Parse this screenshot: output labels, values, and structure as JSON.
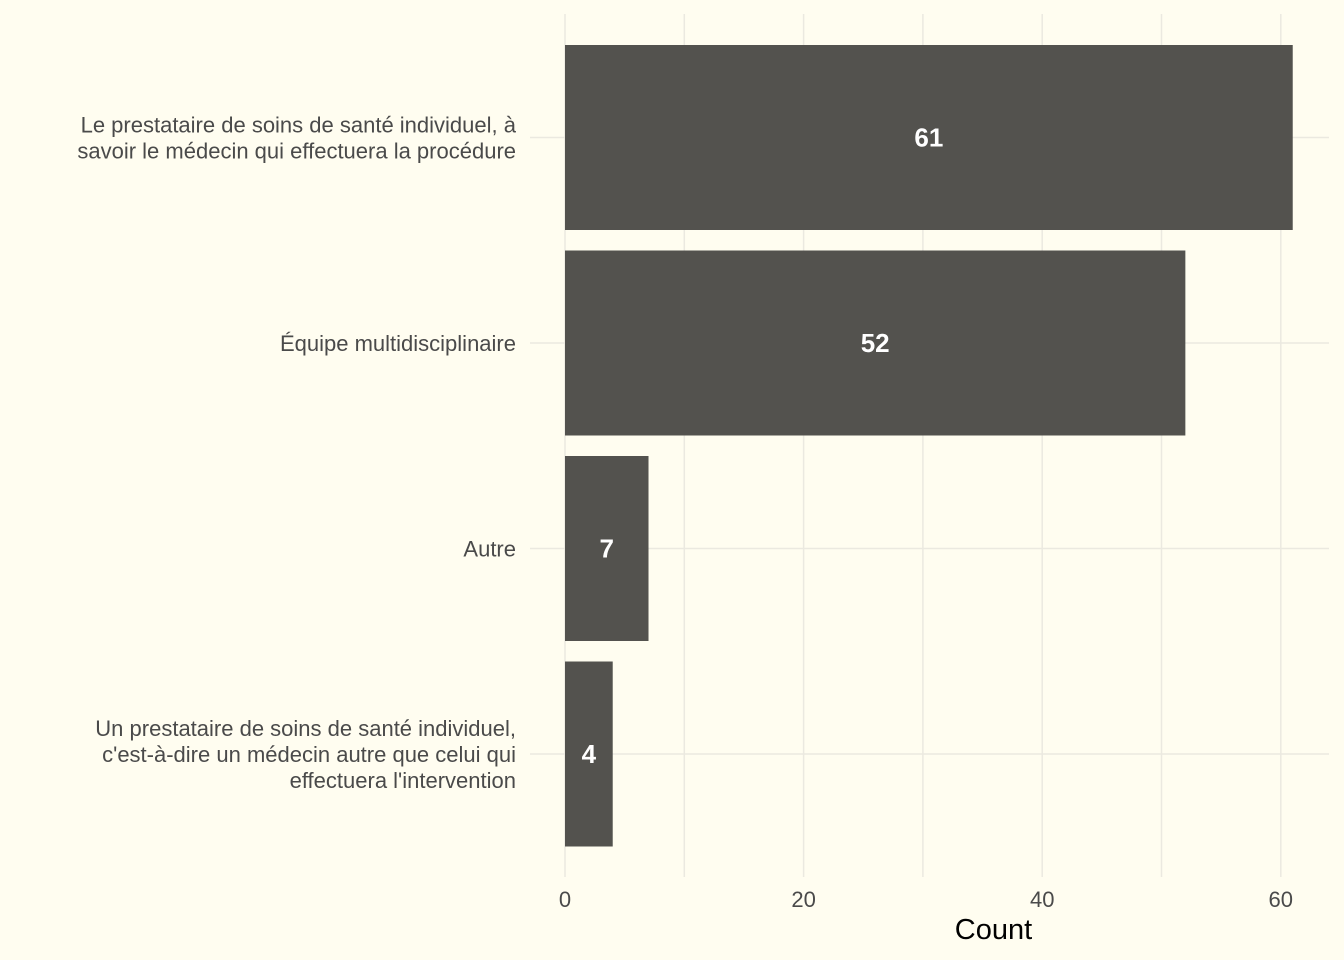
{
  "chart_data": {
    "type": "bar",
    "orientation": "horizontal",
    "categories": [
      [
        "Le prestataire de soins de santé individuel, à",
        "savoir le médecin qui effectuera la procédure"
      ],
      [
        "Équipe multidisciplinaire"
      ],
      [
        "Autre"
      ],
      [
        "Un prestataire de soins de santé individuel,",
        "c'est-à-dire un médecin autre que celui qui",
        "effectuera l'intervention"
      ]
    ],
    "values": [
      61,
      52,
      7,
      4
    ],
    "data_labels": [
      "61",
      "52",
      "7",
      "4"
    ],
    "xlabel": "Count",
    "ylabel": "",
    "title": "",
    "xlim": [
      0,
      63
    ],
    "xticks": [
      0,
      20,
      40,
      60
    ],
    "xtick_labels": [
      "0",
      "20",
      "40",
      "60"
    ],
    "grid": true,
    "legend": "none",
    "colors": {
      "bar": "#53524e",
      "background": "#fffdf0",
      "grid": "#ebe9e0",
      "data_label": "#ffffff"
    }
  }
}
